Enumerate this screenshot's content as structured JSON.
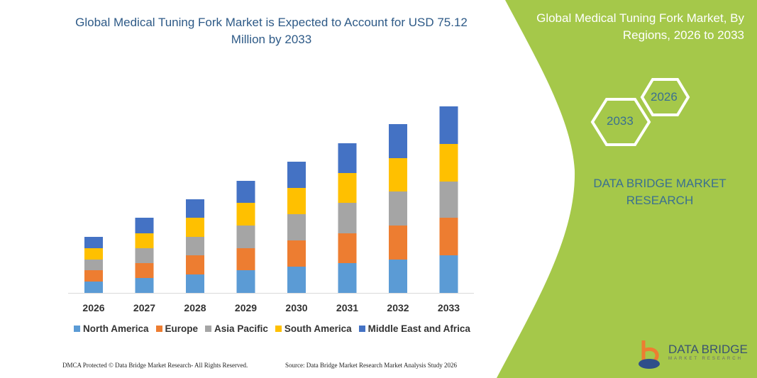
{
  "title": "Global Medical Tuning Fork Market is Expected to Account for USD 75.12 Million by 2033",
  "side_panel": {
    "title": "Global Medical Tuning Fork Market, By Regions, 2026 to 2033",
    "hex_start": "2026",
    "hex_end": "2033",
    "brand": "DATA BRIDGE MARKET RESEARCH",
    "logo_name": "DATA BRIDGE",
    "logo_sub": "MARKET RESEARCH"
  },
  "footer": {
    "left": "DMCA Protected © Data Bridge Market Research- All Rights Reserved.",
    "right": "Source: Data Bridge Market Research Market Analysis Study 2026"
  },
  "colors": {
    "panel": "#a5c84a",
    "title": "#2e5a87"
  },
  "chart_data": {
    "type": "bar",
    "stacked": true,
    "categories": [
      "2026",
      "2027",
      "2028",
      "2029",
      "2030",
      "2031",
      "2032",
      "2033"
    ],
    "series": [
      {
        "name": "North America",
        "color": "#5b9bd5",
        "values": [
          16,
          21,
          26,
          32,
          37,
          42,
          47,
          53
        ]
      },
      {
        "name": "Europe",
        "color": "#ed7d31",
        "values": [
          16,
          21,
          27,
          31,
          37,
          42,
          48,
          53
        ]
      },
      {
        "name": "Asia Pacific",
        "color": "#a5a5a5",
        "values": [
          15,
          21,
          26,
          32,
          37,
          43,
          48,
          51
        ]
      },
      {
        "name": "South America",
        "color": "#ffc000",
        "values": [
          16,
          21,
          27,
          32,
          37,
          42,
          47,
          53
        ]
      },
      {
        "name": "Middle East and Africa",
        "color": "#4472c4",
        "values": [
          16,
          22,
          26,
          31,
          37,
          42,
          48,
          53
        ]
      }
    ],
    "xlabel": "",
    "ylabel": "",
    "grid": false,
    "legend": "bottom",
    "ylim": [
      0,
      270
    ]
  }
}
